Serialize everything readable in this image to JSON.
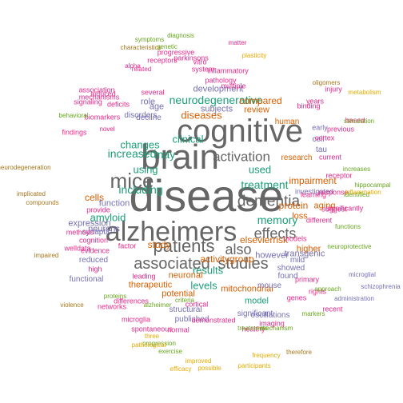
{
  "palette": {
    "gray": "#666666",
    "green": "#1b9e77",
    "orange": "#d95f02",
    "purple": "#7570b3",
    "magenta": "#e7298a",
    "lime": "#66a61e",
    "gold": "#e6ab02",
    "brown": "#a6761d"
  },
  "words": [
    {
      "text": "disease",
      "weight": 10,
      "color": "gray"
    },
    {
      "text": "brain",
      "weight": 9,
      "color": "gray"
    },
    {
      "text": "cognitive",
      "weight": 9,
      "color": "gray"
    },
    {
      "text": "alzheimers",
      "weight": 8,
      "color": "gray"
    },
    {
      "text": "mice",
      "weight": 7,
      "color": "gray"
    },
    {
      "text": "patients",
      "weight": 7,
      "color": "gray"
    },
    {
      "text": "associated",
      "weight": 6,
      "color": "gray"
    },
    {
      "text": "studies",
      "weight": 6,
      "color": "gray"
    },
    {
      "text": "dementia",
      "weight": 6,
      "color": "gray"
    },
    {
      "text": "also",
      "weight": 6,
      "color": "gray"
    },
    {
      "text": "effects",
      "weight": 6,
      "color": "gray"
    },
    {
      "text": "activation",
      "weight": 6,
      "color": "gray"
    },
    {
      "text": "neurodegenerative",
      "weight": 5,
      "color": "green"
    },
    {
      "text": "increased",
      "weight": 5,
      "color": "green"
    },
    {
      "text": "may",
      "weight": 5,
      "color": "green"
    },
    {
      "text": "using",
      "weight": 5,
      "color": "green"
    },
    {
      "text": "including",
      "weight": 5,
      "color": "green"
    },
    {
      "text": "changes",
      "weight": 5,
      "color": "green"
    },
    {
      "text": "clinical",
      "weight": 5,
      "color": "green"
    },
    {
      "text": "treatment",
      "weight": 5,
      "color": "green"
    },
    {
      "text": "memory",
      "weight": 5,
      "color": "green"
    },
    {
      "text": "used",
      "weight": 5,
      "color": "green"
    },
    {
      "text": "results",
      "weight": 5,
      "color": "green"
    },
    {
      "text": "levels",
      "weight": 5,
      "color": "green"
    },
    {
      "text": "amyloid",
      "weight": 5,
      "color": "green"
    },
    {
      "text": "model",
      "weight": 5,
      "color": "green"
    },
    {
      "text": "elsevierrisk",
      "weight": 4,
      "color": "orange"
    },
    {
      "text": "mitochondrial",
      "weight": 4,
      "color": "orange"
    },
    {
      "text": "activitygroup",
      "weight": 4,
      "color": "orange"
    },
    {
      "text": "higher",
      "weight": 4,
      "color": "orange"
    },
    {
      "text": "impairment",
      "weight": 4,
      "color": "orange"
    },
    {
      "text": "research",
      "weight": 4,
      "color": "orange"
    },
    {
      "text": "protein",
      "weight": 4,
      "color": "orange"
    },
    {
      "text": "loss",
      "weight": 4,
      "color": "orange"
    },
    {
      "text": "cells",
      "weight": 4,
      "color": "orange"
    },
    {
      "text": "study",
      "weight": 4,
      "color": "orange"
    },
    {
      "text": "therapeutic",
      "weight": 4,
      "color": "orange"
    },
    {
      "text": "potential",
      "weight": 4,
      "color": "orange"
    },
    {
      "text": "neuronal",
      "weight": 4,
      "color": "orange"
    },
    {
      "text": "diseases",
      "weight": 4,
      "color": "orange"
    },
    {
      "text": "compared",
      "weight": 4,
      "color": "orange"
    },
    {
      "text": "review",
      "weight": 4,
      "color": "orange"
    },
    {
      "text": "human",
      "weight": 4,
      "color": "orange"
    },
    {
      "text": "aging",
      "weight": 4,
      "color": "orange"
    },
    {
      "text": "however",
      "weight": 3,
      "color": "purple"
    },
    {
      "text": "function",
      "weight": 3,
      "color": "purple"
    },
    {
      "text": "neurons",
      "weight": 3,
      "color": "purple"
    },
    {
      "text": "synaptic",
      "weight": 3,
      "color": "purple"
    },
    {
      "text": "expression",
      "weight": 3,
      "color": "purple"
    },
    {
      "text": "subjects",
      "weight": 3,
      "color": "purple"
    },
    {
      "text": "development",
      "weight": 3,
      "color": "purple"
    },
    {
      "text": "role",
      "weight": 3,
      "color": "purple"
    },
    {
      "text": "age",
      "weight": 3,
      "color": "purple"
    },
    {
      "text": "decline",
      "weight": 3,
      "color": "purple"
    },
    {
      "text": "disorders",
      "weight": 3,
      "color": "purple"
    },
    {
      "text": "tau",
      "weight": 3,
      "color": "purple"
    },
    {
      "text": "cell",
      "weight": 3,
      "color": "purple"
    },
    {
      "text": "early",
      "weight": 3,
      "color": "purple"
    },
    {
      "text": "investigated",
      "weight": 3,
      "color": "purple"
    },
    {
      "text": "transgenic",
      "weight": 3,
      "color": "purple"
    },
    {
      "text": "found",
      "weight": 3,
      "color": "purple"
    },
    {
      "text": "significant",
      "weight": 3,
      "color": "purple"
    },
    {
      "text": "structural",
      "weight": 3,
      "color": "purple"
    },
    {
      "text": "published",
      "weight": 3,
      "color": "purple"
    },
    {
      "text": "reduced",
      "weight": 3,
      "color": "purple"
    },
    {
      "text": "functional",
      "weight": 3,
      "color": "purple"
    },
    {
      "text": "mouse",
      "weight": 3,
      "color": "purple"
    },
    {
      "text": "showed",
      "weight": 3,
      "color": "purple"
    },
    {
      "text": "oscillations",
      "weight": 3,
      "color": "purple"
    },
    {
      "text": "mild",
      "weight": 3,
      "color": "purple"
    },
    {
      "text": "signaling",
      "weight": 2,
      "color": "magenta"
    },
    {
      "text": "deficits",
      "weight": 2,
      "color": "magenta"
    },
    {
      "text": "mechanisms",
      "weight": 2,
      "color": "magenta"
    },
    {
      "text": "biomarkers",
      "weight": 2,
      "color": "magenta"
    },
    {
      "text": "system",
      "weight": 2,
      "color": "magenta"
    },
    {
      "text": "inflammatory",
      "weight": 2,
      "color": "magenta"
    },
    {
      "text": "pathology",
      "weight": 2,
      "color": "magenta"
    },
    {
      "text": "receptors",
      "weight": 2,
      "color": "magenta"
    },
    {
      "text": "progressive",
      "weight": 2,
      "color": "magenta"
    },
    {
      "text": "association",
      "weight": 2,
      "color": "magenta"
    },
    {
      "text": "cortex",
      "weight": 2,
      "color": "magenta"
    },
    {
      "text": "learning",
      "weight": 2,
      "color": "magenta"
    },
    {
      "text": "response",
      "weight": 2,
      "color": "magenta"
    },
    {
      "text": "receptor",
      "weight": 2,
      "color": "magenta"
    },
    {
      "text": "suggest",
      "weight": 2,
      "color": "magenta"
    },
    {
      "text": "different",
      "weight": 2,
      "color": "magenta"
    },
    {
      "text": "significantly",
      "weight": 2,
      "color": "magenta"
    },
    {
      "text": "models",
      "weight": 2,
      "color": "magenta"
    },
    {
      "text": "primary",
      "weight": 2,
      "color": "magenta"
    },
    {
      "text": "healthy",
      "weight": 2,
      "color": "magenta"
    },
    {
      "text": "cortical",
      "weight": 2,
      "color": "magenta"
    },
    {
      "text": "networks",
      "weight": 2,
      "color": "magenta"
    },
    {
      "text": "spontaneous",
      "weight": 2,
      "color": "magenta"
    },
    {
      "text": "normal",
      "weight": 2,
      "color": "magenta"
    },
    {
      "text": "demonstrated",
      "weight": 2,
      "color": "magenta"
    },
    {
      "text": "microglia",
      "weight": 2,
      "color": "magenta"
    },
    {
      "text": "differences",
      "weight": 2,
      "color": "magenta"
    },
    {
      "text": "evidence",
      "weight": 2,
      "color": "magenta"
    },
    {
      "text": "findings",
      "weight": 2,
      "color": "magenta"
    },
    {
      "text": "cognition",
      "weight": 2,
      "color": "magenta"
    },
    {
      "text": "factor",
      "weight": 2,
      "color": "magenta"
    },
    {
      "text": "welldata",
      "weight": 2,
      "color": "magenta"
    },
    {
      "text": "methods",
      "weight": 2,
      "color": "magenta"
    },
    {
      "text": "provide",
      "weight": 2,
      "color": "magenta"
    },
    {
      "text": "high",
      "weight": 2,
      "color": "magenta"
    },
    {
      "text": "leading",
      "weight": 2,
      "color": "magenta"
    },
    {
      "text": "imaging",
      "weight": 2,
      "color": "magenta"
    },
    {
      "text": "rights",
      "weight": 2,
      "color": "magenta"
    },
    {
      "text": "recent",
      "weight": 2,
      "color": "magenta"
    },
    {
      "text": "genes",
      "weight": 2,
      "color": "magenta"
    },
    {
      "text": "injury",
      "weight": 2,
      "color": "magenta"
    },
    {
      "text": "years",
      "weight": 2,
      "color": "magenta"
    },
    {
      "text": "multiple",
      "weight": 2,
      "color": "magenta"
    },
    {
      "text": "vitro",
      "weight": 2,
      "color": "magenta"
    },
    {
      "text": "parkinsons",
      "weight": 2,
      "color": "magenta"
    },
    {
      "text": "induced",
      "weight": 2,
      "color": "magenta"
    },
    {
      "text": "several",
      "weight": 2,
      "color": "magenta"
    },
    {
      "text": "current",
      "weight": 2,
      "color": "magenta"
    },
    {
      "text": "previous",
      "weight": 2,
      "color": "magenta"
    },
    {
      "text": "based",
      "weight": 2,
      "color": "magenta"
    },
    {
      "text": "binding",
      "weight": 2,
      "color": "magenta"
    },
    {
      "text": "alpha",
      "weight": 2,
      "color": "magenta"
    },
    {
      "text": "matter",
      "weight": 2,
      "color": "magenta"
    },
    {
      "text": "related",
      "weight": 2,
      "color": "magenta"
    },
    {
      "text": "novel",
      "weight": 2,
      "color": "magenta"
    },
    {
      "text": "alzheimer",
      "weight": 1,
      "color": "lime"
    },
    {
      "text": "neuroprotective",
      "weight": 1,
      "color": "lime"
    },
    {
      "text": "increases",
      "weight": 1,
      "color": "lime"
    },
    {
      "text": "functions",
      "weight": 1,
      "color": "lime"
    },
    {
      "text": "identified",
      "weight": 1,
      "color": "lime"
    },
    {
      "text": "mechanism",
      "weight": 1,
      "color": "lime"
    },
    {
      "text": "proteins",
      "weight": 1,
      "color": "lime"
    },
    {
      "text": "criteria",
      "weight": 1,
      "color": "lime"
    },
    {
      "text": "progression",
      "weight": 1,
      "color": "lime"
    },
    {
      "text": "exercise",
      "weight": 1,
      "color": "lime"
    },
    {
      "text": "treatments",
      "weight": 1,
      "color": "lime"
    },
    {
      "text": "markers",
      "weight": 1,
      "color": "lime"
    },
    {
      "text": "approach",
      "weight": 1,
      "color": "lime"
    },
    {
      "text": "hippocampal",
      "weight": 1,
      "color": "lime"
    },
    {
      "text": "behavioral",
      "weight": 1,
      "color": "lime"
    },
    {
      "text": "stimulation",
      "weight": 1,
      "color": "lime"
    },
    {
      "text": "diagnosis",
      "weight": 1,
      "color": "lime"
    },
    {
      "text": "symptoms",
      "weight": 1,
      "color": "lime"
    },
    {
      "text": "genetic",
      "weight": 1,
      "color": "lime"
    },
    {
      "text": "plasticity",
      "weight": 1,
      "color": "gold"
    },
    {
      "text": "metabolism",
      "weight": 1,
      "color": "gold"
    },
    {
      "text": "inflammation",
      "weight": 1,
      "color": "gold"
    },
    {
      "text": "efficacy",
      "weight": 1,
      "color": "gold"
    },
    {
      "text": "improved",
      "weight": 1,
      "color": "gold"
    },
    {
      "text": "possible",
      "weight": 1,
      "color": "gold"
    },
    {
      "text": "three",
      "weight": 1,
      "color": "gold"
    },
    {
      "text": "pathological",
      "weight": 1,
      "color": "gold"
    },
    {
      "text": "participants",
      "weight": 1,
      "color": "gold"
    },
    {
      "text": "frequency",
      "weight": 1,
      "color": "gold"
    },
    {
      "text": "therefore",
      "weight": 1,
      "color": "brown"
    },
    {
      "text": "neurodegeneration",
      "weight": 1,
      "color": "brown"
    },
    {
      "text": "implicated",
      "weight": 1,
      "color": "brown"
    },
    {
      "text": "compounds",
      "weight": 1,
      "color": "brown"
    },
    {
      "text": "impaired",
      "weight": 1,
      "color": "brown"
    },
    {
      "text": "violence",
      "weight": 1,
      "color": "brown"
    },
    {
      "text": "characteristics",
      "weight": 1,
      "color": "brown"
    },
    {
      "text": "oligomers",
      "weight": 1,
      "color": "brown"
    },
    {
      "text": "schizophrenia",
      "weight": 1,
      "color": "purple"
    },
    {
      "text": "administration",
      "weight": 1,
      "color": "purple"
    },
    {
      "text": "microglial",
      "weight": 1,
      "color": "purple"
    },
    {
      "text": "carvacrol",
      "weight": 1,
      "color": "purple"
    },
    {
      "text": "magnetic",
      "weight": 1,
      "color": "purple"
    },
    {
      "text": "persons",
      "weight": 1,
      "color": "magenta"
    },
    {
      "text": "process",
      "weight": 1,
      "color": "purple"
    },
    {
      "text": "vitamin",
      "weight": 1,
      "color": "lime"
    },
    {
      "text": "atrophy",
      "weight": 1,
      "color": "gold"
    },
    {
      "text": "vascular",
      "weight": 1,
      "color": "brown"
    }
  ]
}
